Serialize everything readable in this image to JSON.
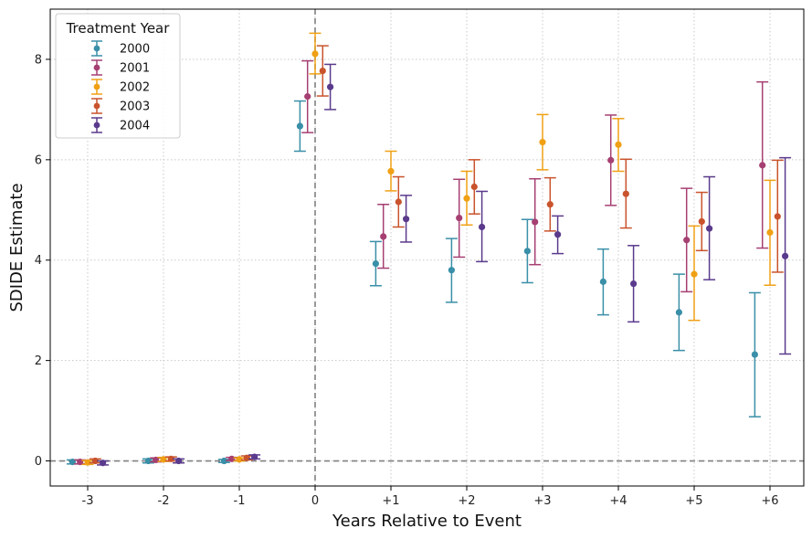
{
  "chart_data": {
    "type": "scatter",
    "subtype": "point-with-error-bars",
    "title": "",
    "xlabel": "Years Relative to Event",
    "ylabel": "SDIDE Estimate",
    "categories": [
      "-3",
      "-2",
      "-1",
      "0",
      "+1",
      "+2",
      "+3",
      "+4",
      "+5",
      "+6"
    ],
    "ylim": [
      -0.5,
      9.0
    ],
    "yticks": [
      0,
      2,
      4,
      6,
      8
    ],
    "grid": true,
    "reference_lines": [
      {
        "axis": "x",
        "at": "0",
        "style": "dashed"
      },
      {
        "axis": "y",
        "at": 0,
        "style": "dashed"
      }
    ],
    "legend": {
      "title": "Treatment Year",
      "placement": "top-left"
    },
    "series": [
      {
        "name": "2000",
        "color": "#3a8fa8",
        "values": [
          -0.02,
          0.0,
          0.0,
          6.67,
          3.93,
          3.8,
          4.18,
          3.57,
          2.96,
          2.12
        ],
        "lower": [
          -0.06,
          -0.04,
          -0.03,
          6.17,
          3.49,
          3.16,
          3.55,
          2.91,
          2.2,
          0.88
        ],
        "upper": [
          0.02,
          0.04,
          0.03,
          7.17,
          4.37,
          4.43,
          4.81,
          4.22,
          3.72,
          3.35
        ]
      },
      {
        "name": "2001",
        "color": "#a63f72",
        "values": [
          -0.02,
          0.02,
          0.04,
          7.26,
          4.47,
          4.84,
          4.76,
          5.99,
          4.4,
          5.89
        ],
        "lower": [
          -0.06,
          -0.02,
          0.01,
          6.54,
          3.84,
          4.06,
          3.91,
          5.09,
          3.37,
          4.24
        ],
        "upper": [
          0.02,
          0.06,
          0.07,
          7.97,
          5.11,
          5.61,
          5.62,
          6.89,
          5.43,
          7.55
        ]
      },
      {
        "name": "2002",
        "color": "#f0a014",
        "values": [
          -0.03,
          0.03,
          0.03,
          8.11,
          5.77,
          5.23,
          6.35,
          6.3,
          3.72,
          4.55
        ],
        "lower": [
          -0.07,
          -0.01,
          0.0,
          7.71,
          5.38,
          4.7,
          5.8,
          5.77,
          2.8,
          3.5
        ],
        "upper": [
          0.01,
          0.07,
          0.06,
          8.52,
          6.17,
          5.77,
          6.9,
          6.82,
          4.68,
          5.59
        ]
      },
      {
        "name": "2003",
        "color": "#c9532c",
        "values": [
          0.0,
          0.04,
          0.06,
          7.77,
          5.16,
          5.46,
          5.11,
          5.32,
          4.77,
          4.87
        ],
        "lower": [
          -0.04,
          0.0,
          0.02,
          7.27,
          4.66,
          4.92,
          4.58,
          4.64,
          4.19,
          3.76
        ],
        "upper": [
          0.04,
          0.08,
          0.1,
          8.27,
          5.66,
          6.0,
          5.64,
          6.01,
          5.35,
          5.99
        ]
      },
      {
        "name": "2004",
        "color": "#5a3a8c",
        "values": [
          -0.04,
          0.0,
          0.08,
          7.45,
          4.82,
          4.66,
          4.51,
          3.53,
          4.63,
          4.08
        ],
        "lower": [
          -0.08,
          -0.04,
          0.04,
          7.0,
          4.36,
          3.97,
          4.13,
          2.77,
          3.61,
          2.13
        ],
        "upper": [
          0.0,
          0.04,
          0.12,
          7.9,
          5.29,
          5.37,
          4.88,
          4.29,
          5.66,
          6.04
        ]
      }
    ]
  }
}
